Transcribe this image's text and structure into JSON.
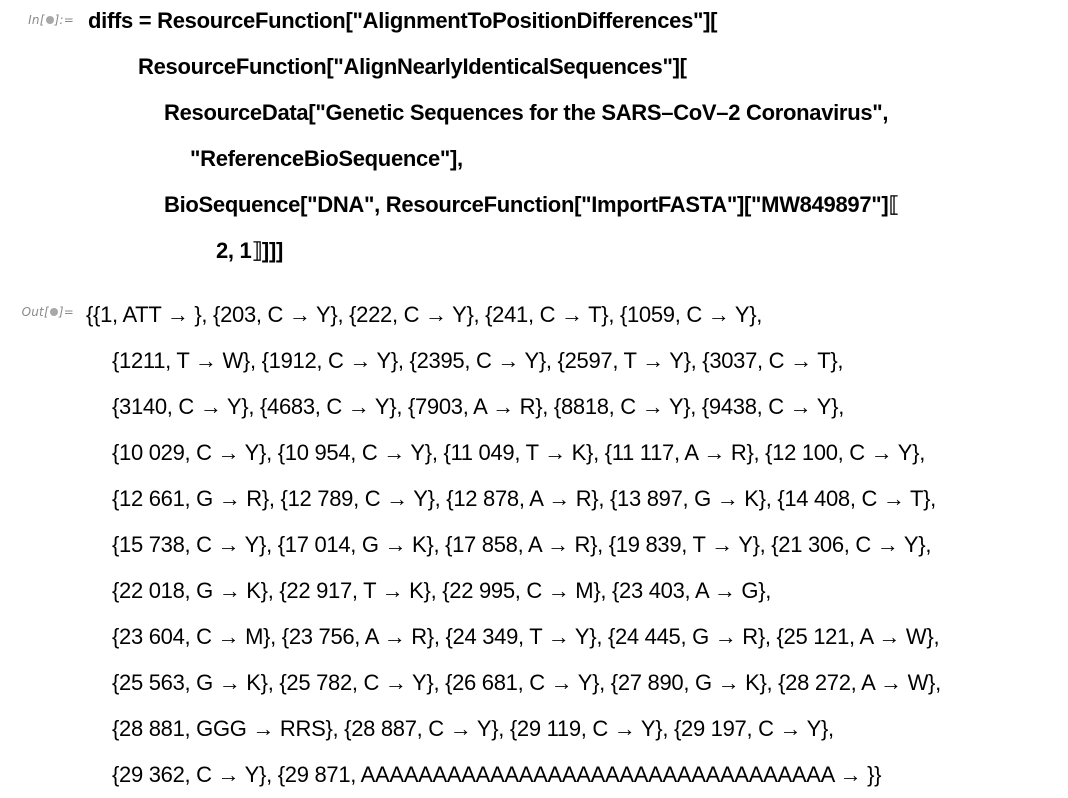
{
  "notebook": {
    "input_label": {
      "prefix": "In[",
      "suffix": "]:="
    },
    "output_label": {
      "prefix": "Out[",
      "suffix": "]="
    },
    "input_lines": [
      "diffs = ResourceFunction[\"AlignmentToPositionDifferences\"][",
      "ResourceFunction[\"AlignNearlyIdenticalSequences\"][",
      "ResourceData[\"Genetic Sequences for the SARS–CoV–2 Coronavirus\",",
      "\"ReferenceBioSequence\"],",
      "BioSequence[\"DNA\", ResourceFunction[\"ImportFASTA\"][\"MW849897\"]⟦",
      "2, 1⟧]]]"
    ],
    "output_lines": [
      "{{1, ATT → }, {203, C → Y}, {222, C → Y}, {241, C → T}, {1059, C → Y},",
      "{1211, T → W}, {1912, C → Y}, {2395, C → Y}, {2597, T → Y}, {3037, C → T},",
      "{3140, C → Y}, {4683, C → Y}, {7903, A → R}, {8818, C → Y}, {9438, C → Y},",
      "{10 029, C → Y}, {10 954, C → Y}, {11 049, T → K}, {11 117, A → R}, {12 100, C → Y},",
      "{12 661, G → R}, {12 789, C → Y}, {12 878, A → R}, {13 897, G → K}, {14 408, C → T},",
      "{15 738, C → Y}, {17 014, G → K}, {17 858, A → R}, {19 839, T → Y}, {21 306, C → Y},",
      "{22 018, G → K}, {22 917, T → K}, {22 995, C → M}, {23 403, A → G},",
      "{23 604, C → M}, {23 756, A → R}, {24 349, T → Y}, {24 445, G → R}, {25 121, A → W},",
      "{25 563, G → K}, {25 782, C → Y}, {26 681, C → Y}, {27 890, G → K}, {28 272, A → W},",
      "{28 881, GGG → RRS}, {28 887, C → Y}, {29 119, C → Y}, {29 197, C → Y},",
      "{29 362, C → Y}, {29 871, AAAAAAAAAAAAAAAAAAAAAAAAAAAAAAAAA → }}"
    ]
  }
}
